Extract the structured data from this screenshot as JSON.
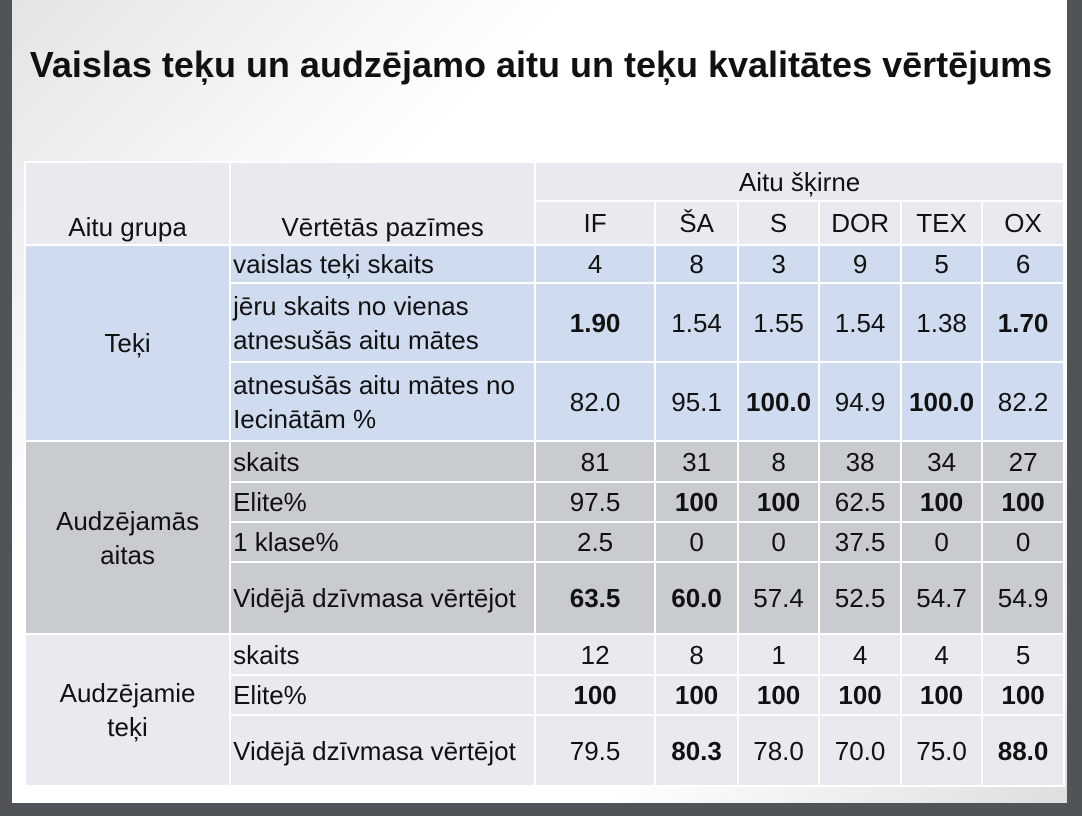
{
  "title": "Vaislas teķu un audzējamo aitu un teķu kvalitātes vērtējums",
  "header": {
    "group_col": "Aitu grupa",
    "trait_col": "Vērtētās pazīmes",
    "breed_header": "Aitu šķirne",
    "breeds": [
      "IF",
      "ŠA",
      "S",
      "DOR",
      "TEX",
      "OX"
    ]
  },
  "groups": [
    {
      "name": "Teķi",
      "rows": [
        {
          "trait": "vaislas teķi skaits",
          "values": [
            "4",
            "8",
            "3",
            "9",
            "5",
            "6"
          ],
          "bold": [
            0,
            0,
            0,
            0,
            0,
            0
          ]
        },
        {
          "trait": "jēru skaits no vienas atnesušās aitu mātes",
          "values": [
            "1.90",
            "1.54",
            "1.55",
            "1.54",
            "1.38",
            "1.70"
          ],
          "bold": [
            1,
            0,
            0,
            0,
            0,
            1
          ]
        },
        {
          "trait": "atnesušās aitu mātes no Iecinātām %",
          "values": [
            "82.0",
            "95.1",
            "100.0",
            "94.9",
            "100.0",
            "82.2"
          ],
          "bold": [
            0,
            0,
            1,
            0,
            1,
            0
          ]
        }
      ]
    },
    {
      "name": "Audzējamās aitas",
      "rows": [
        {
          "trait": "skaits",
          "values": [
            "81",
            "31",
            "8",
            "38",
            "34",
            "27"
          ],
          "bold": [
            0,
            0,
            0,
            0,
            0,
            0
          ]
        },
        {
          "trait": "Elite%",
          "values": [
            "97.5",
            "100",
            "100",
            "62.5",
            "100",
            "100"
          ],
          "bold": [
            0,
            1,
            1,
            0,
            1,
            1
          ]
        },
        {
          "trait": "1 klase%",
          "values": [
            "2.5",
            "0",
            "0",
            "37.5",
            "0",
            "0"
          ],
          "bold": [
            0,
            0,
            0,
            0,
            0,
            0
          ]
        },
        {
          "trait": "Vidējā dzīvmasa vērtējot",
          "values": [
            "63.5",
            "60.0",
            "57.4",
            "52.5",
            "54.7",
            "54.9"
          ],
          "bold": [
            1,
            1,
            0,
            0,
            0,
            0
          ]
        }
      ]
    },
    {
      "name": "Audzējamie teķi",
      "rows": [
        {
          "trait": "skaits",
          "values": [
            "12",
            "8",
            "1",
            "4",
            "4",
            "5"
          ],
          "bold": [
            0,
            0,
            0,
            0,
            0,
            0
          ]
        },
        {
          "trait": "Elite%",
          "values": [
            "100",
            "100",
            "100",
            "100",
            "100",
            "100"
          ],
          "bold": [
            1,
            1,
            1,
            1,
            1,
            1
          ]
        },
        {
          "trait": "Vidējā dzīvmasa vērtējot",
          "values": [
            "79.5",
            "80.3",
            "78.0",
            "70.0",
            "75.0",
            "88.0"
          ],
          "bold": [
            0,
            1,
            0,
            0,
            0,
            1
          ]
        }
      ]
    }
  ]
}
